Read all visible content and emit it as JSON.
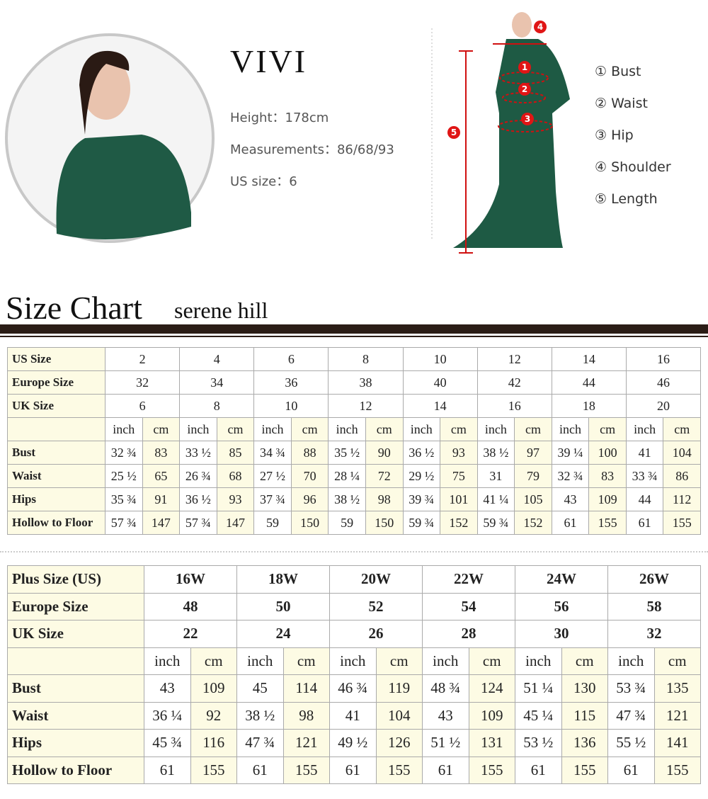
{
  "model": {
    "name": "VIVI",
    "details": [
      "Height：178cm",
      "Measurements：86/68/93",
      "US size：6"
    ]
  },
  "diagram": {
    "markers": [
      "1",
      "2",
      "3",
      "4",
      "5"
    ],
    "legend": [
      "① Bust",
      "② Waist",
      "③ Hip",
      "④ Shoulder",
      "⑤ Length"
    ]
  },
  "size_chart": {
    "title": "Size Chart",
    "subtitle": "serene hill",
    "standard": {
      "units": [
        "inch",
        "cm"
      ],
      "size_rows": [
        {
          "label": "US Size",
          "values": [
            2,
            4,
            6,
            8,
            10,
            12,
            14,
            16
          ]
        },
        {
          "label": "Europe Size",
          "values": [
            32,
            34,
            36,
            38,
            40,
            42,
            44,
            46
          ]
        },
        {
          "label": "UK Size",
          "values": [
            6,
            8,
            10,
            12,
            14,
            16,
            18,
            20
          ]
        }
      ],
      "measure_rows": [
        {
          "label": "Bust",
          "values": [
            "32 ¾",
            83,
            "33 ½",
            85,
            "34 ¾",
            88,
            "35 ½",
            90,
            "36 ½",
            93,
            "38 ½",
            97,
            "39 ¼",
            100,
            41,
            104
          ]
        },
        {
          "label": "Waist",
          "values": [
            "25 ½",
            65,
            "26 ¾",
            68,
            "27 ½",
            70,
            "28 ¼",
            72,
            "29 ½",
            75,
            31,
            79,
            "32 ¾",
            83,
            "33 ¾",
            86
          ]
        },
        {
          "label": "Hips",
          "values": [
            "35 ¾",
            91,
            "36 ½",
            93,
            "37 ¾",
            96,
            "38 ½",
            98,
            "39 ¾",
            101,
            "41 ¼",
            105,
            43,
            109,
            44,
            112
          ]
        },
        {
          "label": "Hollow to Floor",
          "values": [
            "57 ¾",
            147,
            "57 ¾",
            147,
            59,
            150,
            59,
            150,
            "59 ¾",
            152,
            "59 ¾",
            152,
            61,
            155,
            61,
            155
          ]
        }
      ]
    },
    "plus": {
      "units": [
        "inch",
        "cm"
      ],
      "size_rows": [
        {
          "label": "Plus Size (US)",
          "values": [
            "16W",
            "18W",
            "20W",
            "22W",
            "24W",
            "26W"
          ]
        },
        {
          "label": "Europe Size",
          "values": [
            48,
            50,
            52,
            54,
            56,
            58
          ]
        },
        {
          "label": "UK Size",
          "values": [
            22,
            24,
            26,
            28,
            30,
            32
          ]
        }
      ],
      "measure_rows": [
        {
          "label": "Bust",
          "values": [
            43,
            109,
            45,
            114,
            "46 ¾",
            119,
            "48 ¾",
            124,
            "51 ¼",
            130,
            "53 ¾",
            135
          ]
        },
        {
          "label": "Waist",
          "values": [
            "36 ¼",
            92,
            "38 ½",
            98,
            41,
            104,
            43,
            109,
            "45 ¼",
            115,
            "47 ¾",
            121
          ]
        },
        {
          "label": "Hips",
          "values": [
            "45 ¾",
            116,
            "47 ¾",
            121,
            "49 ½",
            126,
            "51 ½",
            131,
            "53 ½",
            136,
            "55 ½",
            141
          ]
        },
        {
          "label": "Hollow to Floor",
          "values": [
            61,
            155,
            61,
            155,
            61,
            155,
            61,
            155,
            61,
            155,
            61,
            155
          ]
        }
      ]
    }
  }
}
